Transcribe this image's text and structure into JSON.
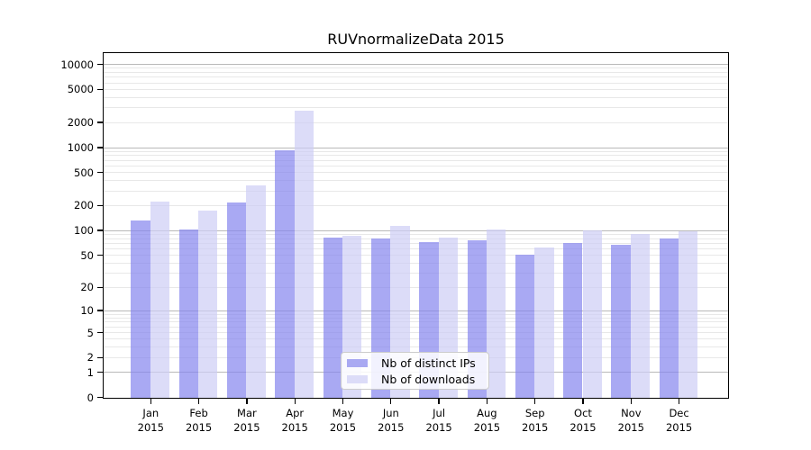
{
  "figure": {
    "title": "RUVnormalizeData 2015"
  },
  "chart_data": {
    "type": "bar",
    "title": "RUVnormalizeData 2015",
    "categories": [
      "Jan",
      "Feb",
      "Mar",
      "Apr",
      "May",
      "Jun",
      "Jul",
      "Aug",
      "Sep",
      "Oct",
      "Nov",
      "Dec"
    ],
    "category_year": "2015",
    "series": [
      {
        "name": "Nb of distinct IPs",
        "color": "#a9a9f2",
        "fill": "rgba(132,132,238,0.7)",
        "values": [
          135,
          105,
          220,
          940,
          83,
          81,
          74,
          77,
          51,
          71,
          68,
          81
        ]
      },
      {
        "name": "Nb of downloads",
        "color": "#dcdcf8",
        "fill": "rgba(205,205,245,0.7)",
        "values": [
          229,
          177,
          355,
          2780,
          87,
          115,
          83,
          103,
          63,
          102,
          91,
          100
        ]
      }
    ],
    "xlabel": "",
    "ylabel": "",
    "yscale": "log1p",
    "yticks": [
      0,
      1,
      2,
      5,
      10,
      20,
      50,
      100,
      200,
      500,
      1000,
      2000,
      5000,
      10000
    ],
    "ylim": [
      0,
      13500
    ],
    "grid": "major+minor",
    "legend_position": "lower-center"
  },
  "colors": {
    "background": "#ffffff",
    "spine": "#000000",
    "grid_major": "#b9b9b9",
    "grid_minor": "#e8e8e8",
    "legend_border": "#cccccc",
    "legend_background": "rgba(255,255,255,0.85)",
    "text": "#000000"
  }
}
